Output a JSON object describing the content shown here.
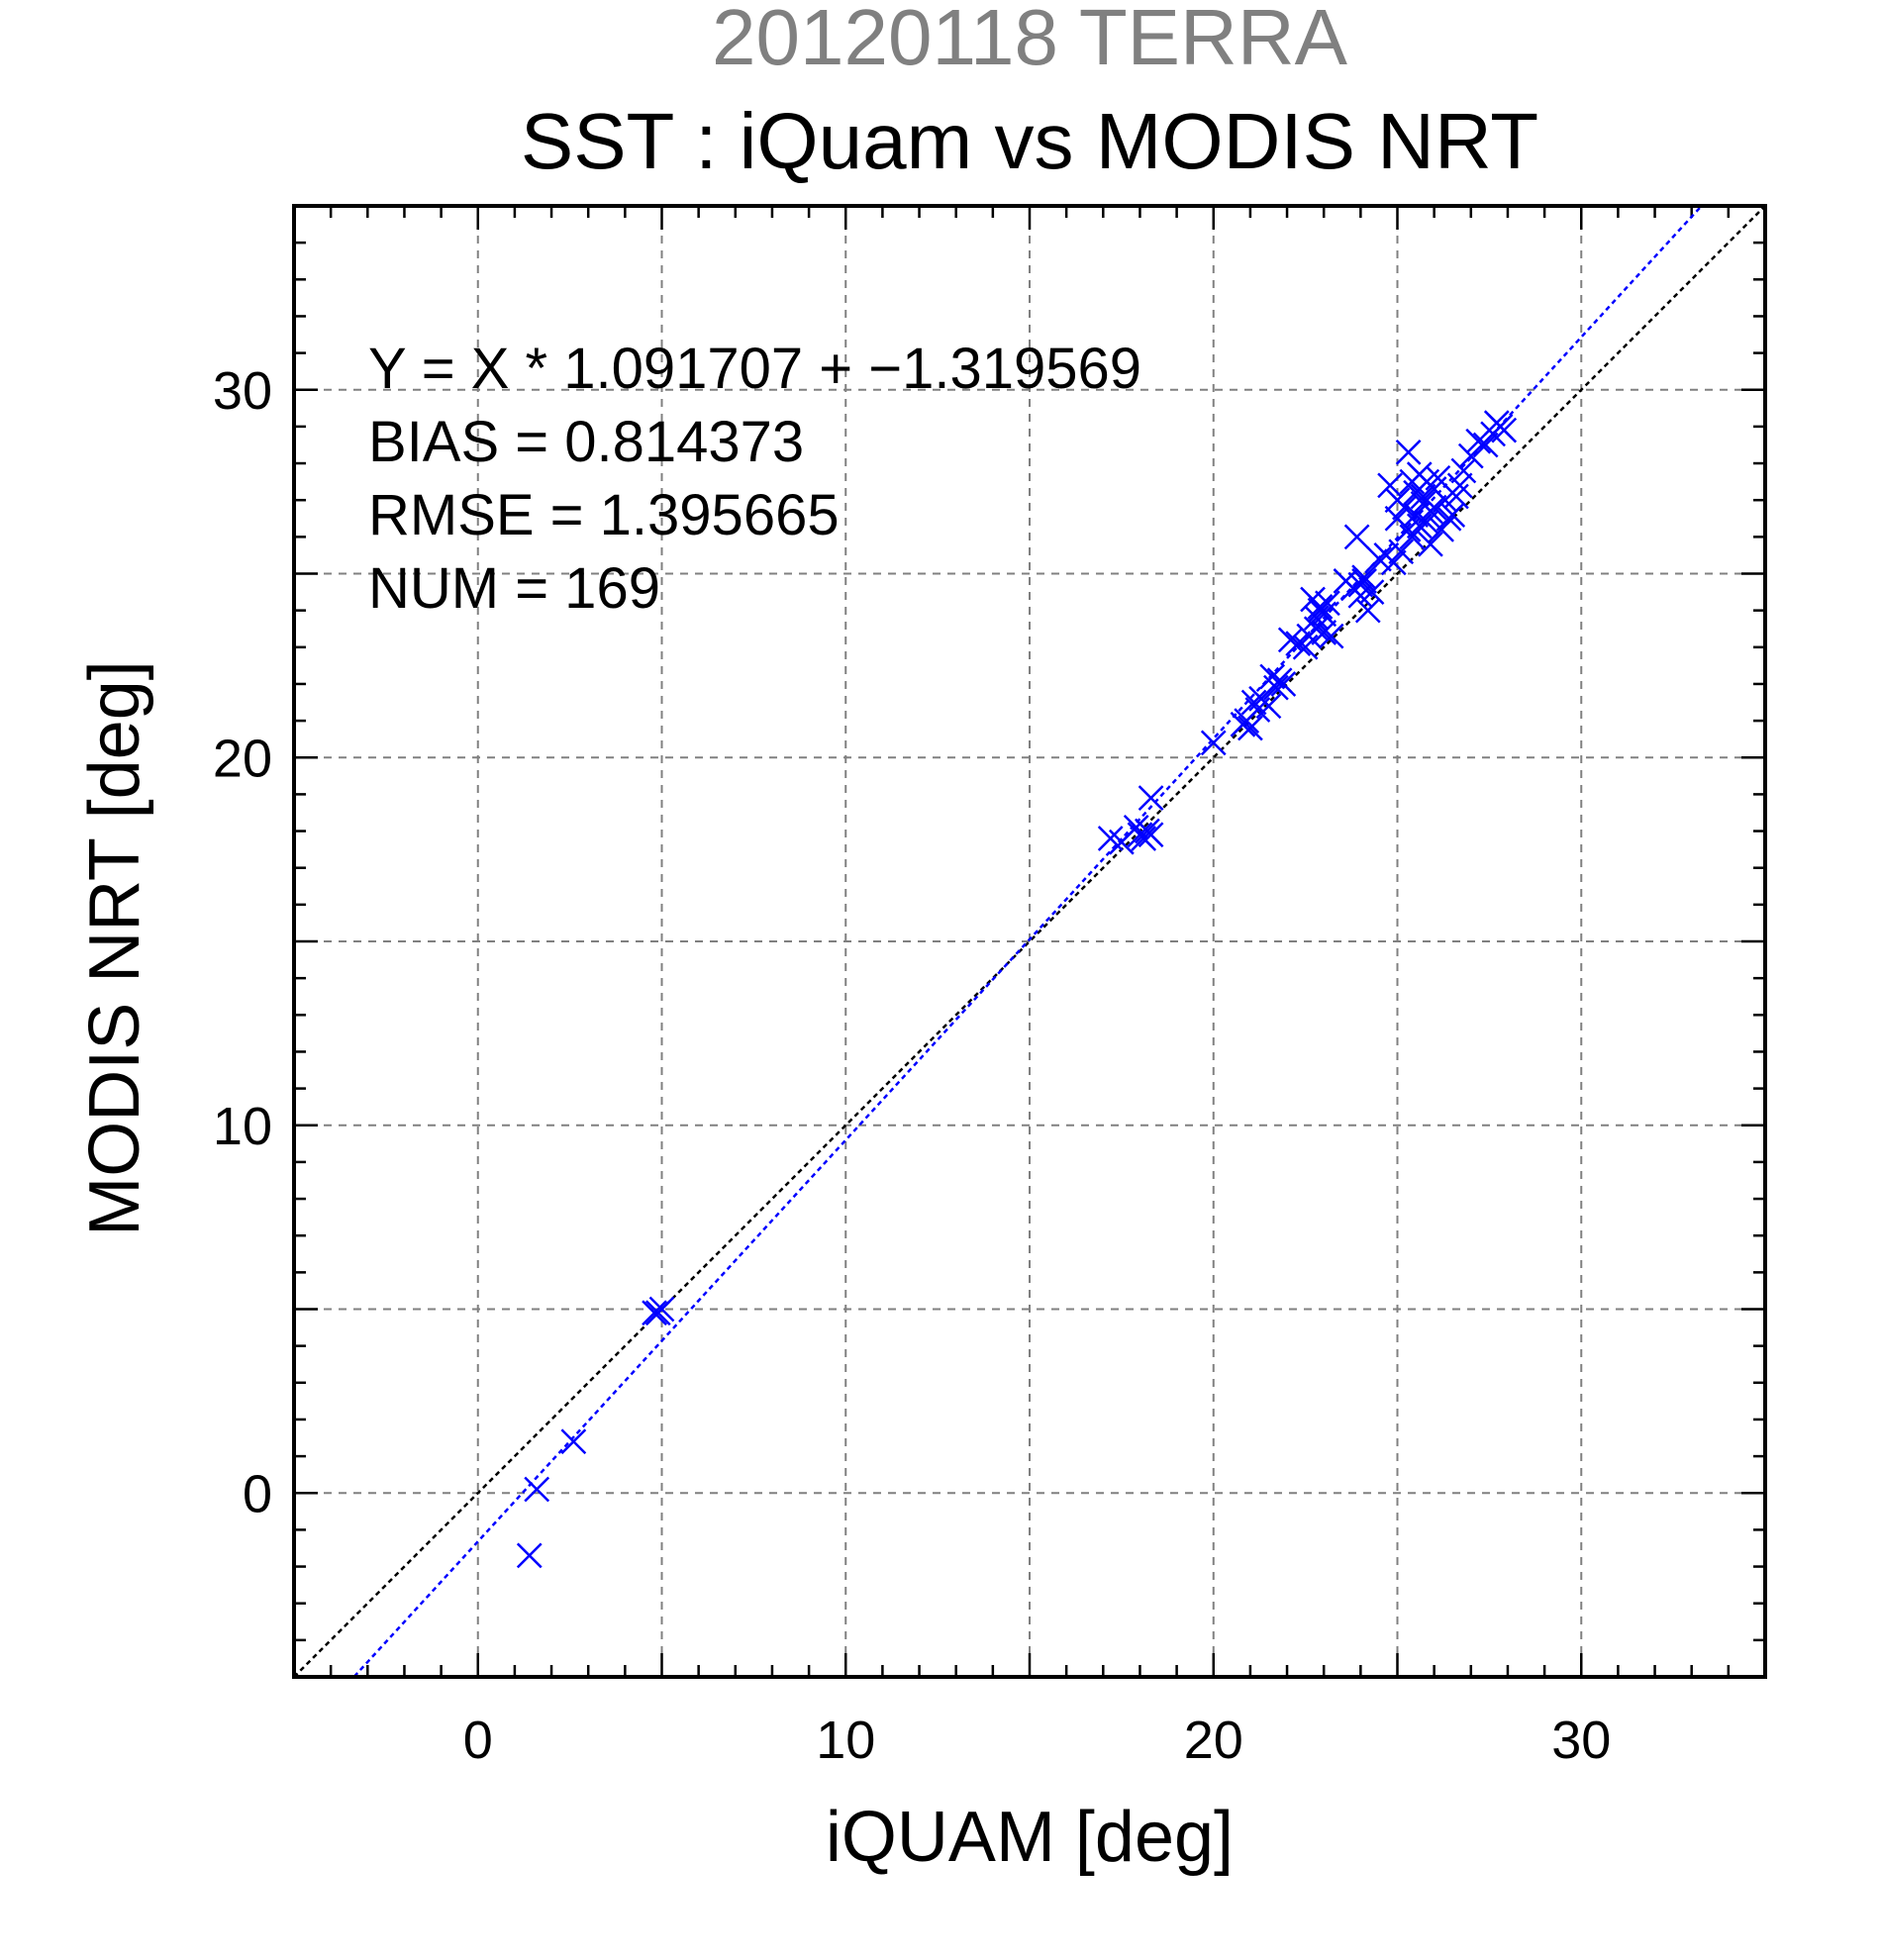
{
  "chart_data": {
    "type": "scatter",
    "title_date": "20120118 TERRA",
    "title": "SST : iQuam vs MODIS NRT",
    "xlabel": "iQUAM [deg]",
    "ylabel": "MODIS NRT [deg]",
    "xlim": [
      -5,
      35
    ],
    "ylim": [
      -5,
      35
    ],
    "x_ticks": [
      0,
      10,
      20,
      30
    ],
    "y_ticks": [
      0,
      10,
      20,
      30
    ],
    "grid": true,
    "stats": [
      "Y = X * 1.091707 + −1.319569",
      "BIAS = 0.814373",
      "RMSE = 1.395665",
      "NUM = 169"
    ],
    "regression": {
      "slope": 1.091707,
      "intercept": -1.319569
    },
    "colors": {
      "points": "#0000ff",
      "regression_line": "#0000ff",
      "identity_line": "#000000",
      "title_date": "#808080",
      "grid": "#808080"
    },
    "series": [
      {
        "x": [
          1.4,
          1.6,
          2.6,
          4.8,
          4.9,
          5.0,
          17.2,
          17.5,
          17.9,
          18.0,
          18.1,
          18.2,
          18.3,
          18.3,
          20.0,
          20.8,
          20.9,
          21.0,
          21.1,
          21.2,
          21.3,
          21.5,
          21.6,
          21.7,
          21.8,
          21.9,
          22.1,
          22.3,
          22.5,
          22.6,
          22.7,
          22.8,
          22.8,
          22.9,
          22.9,
          23.0,
          23.0,
          23.1,
          23.2,
          23.6,
          23.8,
          23.9,
          24.0,
          24.0,
          24.1,
          24.1,
          24.2,
          24.3,
          24.5,
          24.7,
          24.8,
          24.9,
          25.0,
          25.0,
          25.1,
          25.2,
          25.3,
          25.3,
          25.4,
          25.4,
          25.5,
          25.5,
          25.6,
          25.6,
          25.7,
          25.7,
          25.8,
          25.8,
          25.9,
          25.9,
          26.0,
          26.0,
          26.1,
          26.2,
          26.3,
          26.4,
          26.5,
          26.6,
          26.7,
          26.8,
          27.0,
          27.2,
          27.4,
          27.6,
          27.7,
          27.8,
          27.9
        ],
        "y": [
          -1.7,
          0.1,
          1.4,
          4.9,
          4.9,
          5.0,
          17.8,
          17.7,
          18.1,
          17.9,
          17.8,
          18.0,
          17.9,
          18.9,
          20.4,
          20.9,
          21.0,
          20.8,
          21.5,
          21.3,
          21.6,
          21.4,
          22.2,
          21.9,
          22.1,
          22.0,
          23.2,
          23.1,
          23.0,
          23.3,
          24.3,
          23.5,
          23.8,
          24.1,
          24.0,
          23.4,
          23.9,
          24.2,
          23.3,
          24.8,
          24.6,
          26.0,
          24.4,
          24.7,
          24.9,
          24.8,
          24.0,
          24.5,
          25.4,
          25.5,
          27.4,
          25.3,
          27.0,
          26.5,
          25.6,
          26.8,
          28.3,
          26.2,
          27.5,
          26.0,
          27.2,
          26.6,
          27.7,
          26.3,
          26.9,
          27.1,
          27.5,
          26.4,
          25.8,
          26.7,
          27.3,
          26.8,
          27.6,
          26.2,
          27.0,
          26.5,
          26.6,
          27.1,
          27.4,
          27.8,
          28.2,
          28.6,
          28.5,
          28.8,
          29.1,
          29.0,
          28.9
        ]
      }
    ]
  }
}
